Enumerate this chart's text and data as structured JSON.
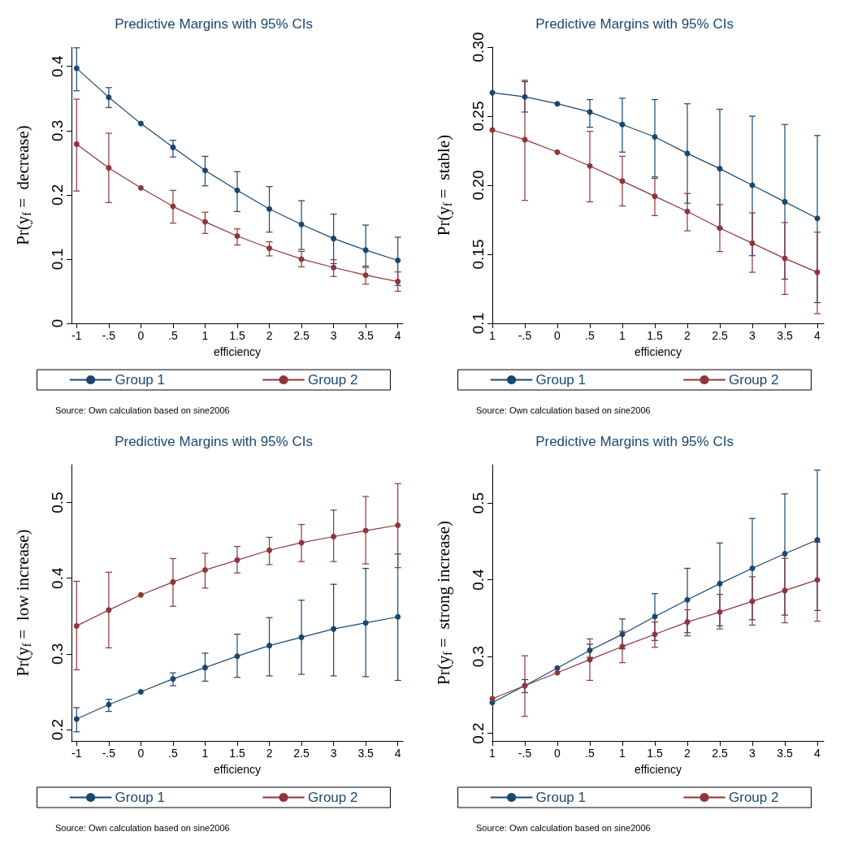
{
  "chart_data": [
    {
      "type": "line",
      "title": "Predictive Margins with 95% CIs",
      "xlabel": "efficiency",
      "ylabel": "Pr(y$_{f}$ =  decrease)",
      "x": [
        -1,
        -0.5,
        0,
        0.5,
        1,
        1.5,
        2,
        2.5,
        3,
        3.5,
        4
      ],
      "xlim": [
        -1.08,
        4.08
      ],
      "xticks": [
        -1,
        {
          "value": -0.5,
          "label": "-.5"
        },
        0,
        {
          "value": 0.5,
          "label": ".5"
        },
        1,
        1.5,
        2,
        2.5,
        3,
        3.5,
        4
      ],
      "ylim": [
        0,
        0.43
      ],
      "yticks": [
        0,
        0.1,
        0.2,
        0.3,
        0.4
      ],
      "grid": false,
      "legend": "bottom",
      "marker": "circle",
      "series": [
        {
          "name": "Group 1",
          "color": "#1a476f",
          "values": [
            0.397,
            0.352,
            0.311,
            0.274,
            0.238,
            0.207,
            0.178,
            0.154,
            0.132,
            0.114,
            0.098
          ],
          "errors": [
            [
              0.362,
              0.429
            ],
            [
              0.336,
              0.367
            ],
            null,
            [
              0.259,
              0.285
            ],
            [
              0.214,
              0.26
            ],
            [
              0.174,
              0.236
            ],
            [
              0.142,
              0.213
            ],
            [
              0.115,
              0.191
            ],
            [
              0.093,
              0.17
            ],
            [
              0.089,
              0.153
            ],
            [
              0.059,
              0.134
            ]
          ]
        },
        {
          "name": "Group 2",
          "color": "#90353b",
          "values": [
            0.279,
            0.242,
            0.211,
            0.182,
            0.158,
            0.136,
            0.117,
            0.1,
            0.087,
            0.075,
            0.065
          ],
          "errors": [
            [
              0.206,
              0.349
            ],
            [
              0.188,
              0.296
            ],
            null,
            [
              0.156,
              0.207
            ],
            [
              0.14,
              0.173
            ],
            [
              0.122,
              0.147
            ],
            [
              0.105,
              0.127
            ],
            [
              0.088,
              0.112
            ],
            [
              0.073,
              0.099
            ],
            [
              0.061,
              0.087
            ],
            [
              0.05,
              0.08
            ]
          ]
        }
      ],
      "annotations": [
        "Source: Own calculation based on sine2006"
      ]
    },
    {
      "type": "line",
      "title": "Predictive Margins with 95% CIs",
      "xlabel": "efficiency",
      "ylabel": "Pr(y$_{f}$ =  stable)",
      "x": [
        -1,
        -0.5,
        0,
        0.5,
        1,
        1.5,
        2,
        2.5,
        3,
        3.5,
        4
      ],
      "xlim": [
        -1,
        4.1
      ],
      "xticks": [
        {
          "value": -1,
          "label": "1"
        },
        {
          "value": -0.5,
          "label": "-.5"
        },
        0,
        {
          "value": 0.5,
          "label": ".5"
        },
        1,
        1.5,
        2,
        2.5,
        3,
        3.5,
        4
      ],
      "ylim": [
        0.1,
        0.3
      ],
      "yticks": [
        0.1,
        {
          "value": 0.15,
          "label": "0.15"
        },
        {
          "value": 0.2,
          "label": "0.20"
        },
        {
          "value": 0.25,
          "label": "0.25"
        },
        {
          "value": 0.3,
          "label": "0.30"
        }
      ],
      "grid": false,
      "legend": "bottom",
      "marker": "circle",
      "series": [
        {
          "name": "Group 1",
          "color": "#1a476f",
          "values": [
            0.267,
            0.264,
            0.259,
            0.253,
            0.244,
            0.235,
            0.223,
            0.212,
            0.2,
            0.188,
            0.176
          ],
          "errors": [
            null,
            [
              0.253,
              0.275
            ],
            null,
            [
              0.242,
              0.262
            ],
            [
              0.224,
              0.263
            ],
            [
              0.206,
              0.262
            ],
            [
              0.187,
              0.259
            ],
            [
              0.169,
              0.255
            ],
            [
              0.149,
              0.25
            ],
            [
              0.132,
              0.244
            ],
            [
              0.115,
              0.236
            ]
          ]
        },
        {
          "name": "Group 2",
          "color": "#90353b",
          "values": [
            0.24,
            0.233,
            0.224,
            0.214,
            0.203,
            0.192,
            0.181,
            0.169,
            0.158,
            0.147,
            0.137
          ],
          "errors": [
            null,
            [
              0.189,
              0.276
            ],
            null,
            [
              0.188,
              0.239
            ],
            [
              0.185,
              0.221
            ],
            [
              0.178,
              0.205
            ],
            [
              0.167,
              0.194
            ],
            [
              0.152,
              0.186
            ],
            [
              0.137,
              0.18
            ],
            [
              0.121,
              0.173
            ],
            [
              0.107,
              0.166
            ]
          ]
        }
      ],
      "annotations": [
        "Source: Own calculation based on sine2006"
      ]
    },
    {
      "type": "line",
      "title": "Predictive Margins with 95% CIs",
      "xlabel": "efficiency",
      "ylabel": "Pr(y$_{f}$ =  low increase)",
      "x": [
        -1,
        -0.5,
        0,
        0.5,
        1,
        1.5,
        2,
        2.5,
        3,
        3.5,
        4
      ],
      "xlim": [
        -1.08,
        4.08
      ],
      "xticks": [
        -1,
        {
          "value": -0.5,
          "label": "-.5"
        },
        0,
        {
          "value": 0.5,
          "label": ".5"
        },
        1,
        1.5,
        2,
        2.5,
        3,
        3.5,
        4
      ],
      "ylim": [
        0.185,
        0.55
      ],
      "yticks": [
        0.2,
        0.3,
        0.4,
        0.5
      ],
      "grid": false,
      "legend": "bottom",
      "marker": "circle",
      "series": [
        {
          "name": "Group 1",
          "color": "#1a476f",
          "values": [
            0.214,
            0.233,
            0.25,
            0.267,
            0.282,
            0.297,
            0.311,
            0.322,
            0.333,
            0.341,
            0.349
          ],
          "errors": [
            [
              0.197,
              0.229
            ],
            [
              0.224,
              0.24
            ],
            null,
            [
              0.258,
              0.275
            ],
            [
              0.264,
              0.301
            ],
            [
              0.269,
              0.326
            ],
            [
              0.271,
              0.348
            ],
            [
              0.273,
              0.371
            ],
            [
              0.271,
              0.392
            ],
            [
              0.27,
              0.413
            ],
            [
              0.265,
              0.432
            ]
          ]
        },
        {
          "name": "Group 2",
          "color": "#90353b",
          "values": [
            0.337,
            0.358,
            0.378,
            0.395,
            0.411,
            0.424,
            0.437,
            0.447,
            0.455,
            0.463,
            0.47
          ],
          "errors": [
            [
              0.279,
              0.396
            ],
            [
              0.308,
              0.408
            ],
            null,
            [
              0.363,
              0.426
            ],
            [
              0.387,
              0.433
            ],
            [
              0.407,
              0.442
            ],
            [
              0.418,
              0.454
            ],
            [
              0.422,
              0.471
            ],
            [
              0.422,
              0.49
            ],
            [
              0.419,
              0.508
            ],
            [
              0.414,
              0.525
            ]
          ]
        }
      ],
      "annotations": [
        "Source: Own calculation based on sine2006"
      ]
    },
    {
      "type": "line",
      "title": "Predictive Margins with 95% CIs",
      "xlabel": "efficiency",
      "ylabel": "Pr(y$_{f}$ =  strong increase)",
      "x": [
        -1,
        -0.5,
        0,
        0.5,
        1,
        1.5,
        2,
        2.5,
        3,
        3.5,
        4
      ],
      "xlim": [
        -1,
        4.1
      ],
      "xticks": [
        {
          "value": -1,
          "label": "1"
        },
        {
          "value": -0.5,
          "label": "-.5"
        },
        0,
        {
          "value": 0.5,
          "label": ".5"
        },
        1,
        1.5,
        2,
        2.5,
        3,
        3.5,
        4
      ],
      "ylim": [
        0.19,
        0.55
      ],
      "yticks": [
        0.2,
        0.3,
        0.4,
        0.5
      ],
      "grid": false,
      "legend": "bottom",
      "marker": "circle",
      "series": [
        {
          "name": "Group 1",
          "color": "#1a476f",
          "values": [
            0.24,
            0.262,
            0.285,
            0.308,
            0.329,
            0.352,
            0.374,
            0.395,
            0.415,
            0.434,
            0.452
          ],
          "errors": [
            null,
            [
              0.253,
              0.27
            ],
            null,
            [
              0.299,
              0.316
            ],
            [
              0.31,
              0.349
            ],
            [
              0.321,
              0.382
            ],
            [
              0.331,
              0.415
            ],
            [
              0.34,
              0.448
            ],
            [
              0.348,
              0.48
            ],
            [
              0.354,
              0.512
            ],
            [
              0.36,
              0.543
            ]
          ]
        },
        {
          "name": "Group 2",
          "color": "#90353b",
          "values": [
            0.245,
            0.262,
            0.279,
            0.296,
            0.313,
            0.329,
            0.345,
            0.358,
            0.372,
            0.386,
            0.4
          ],
          "errors": [
            null,
            [
              0.222,
              0.301
            ],
            null,
            [
              0.269,
              0.323
            ],
            [
              0.292,
              0.333
            ],
            [
              0.312,
              0.345
            ],
            [
              0.327,
              0.361
            ],
            [
              0.336,
              0.381
            ],
            [
              0.341,
              0.404
            ],
            [
              0.344,
              0.428
            ],
            [
              0.346,
              0.449
            ]
          ]
        }
      ],
      "annotations": [
        "Source: Own calculation based on sine2006"
      ]
    }
  ]
}
